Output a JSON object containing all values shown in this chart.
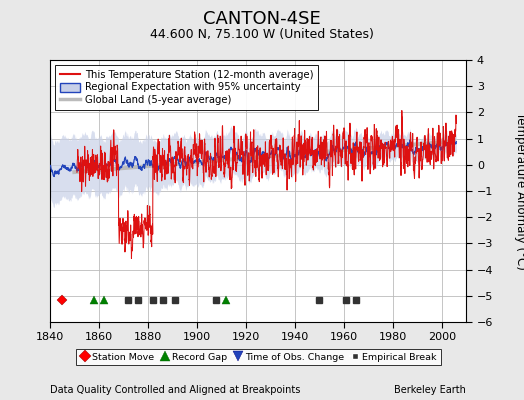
{
  "title": "CANTON-4SE",
  "subtitle": "44.600 N, 75.100 W (United States)",
  "ylabel": "Temperature Anomaly (°C)",
  "xlabel_left": "Data Quality Controlled and Aligned at Breakpoints",
  "xlabel_right": "Berkeley Earth",
  "xlim": [
    1840,
    2010
  ],
  "ylim": [
    -6,
    4
  ],
  "yticks": [
    -6,
    -5,
    -4,
    -3,
    -2,
    -1,
    0,
    1,
    2,
    3,
    4
  ],
  "xticks": [
    1840,
    1860,
    1880,
    1900,
    1920,
    1940,
    1960,
    1980,
    2000
  ],
  "bg_color": "#e8e8e8",
  "plot_bg_color": "#ffffff",
  "grid_color": "#bbbbbb",
  "title_fontsize": 13,
  "subtitle_fontsize": 9,
  "random_seed": 42,
  "station_moves": [
    1845
  ],
  "record_gaps": [
    1858,
    1862,
    1912
  ],
  "time_obs_changes": [],
  "empirical_breaks": [
    1872,
    1876,
    1882,
    1886,
    1891,
    1908,
    1950,
    1961,
    1965
  ]
}
